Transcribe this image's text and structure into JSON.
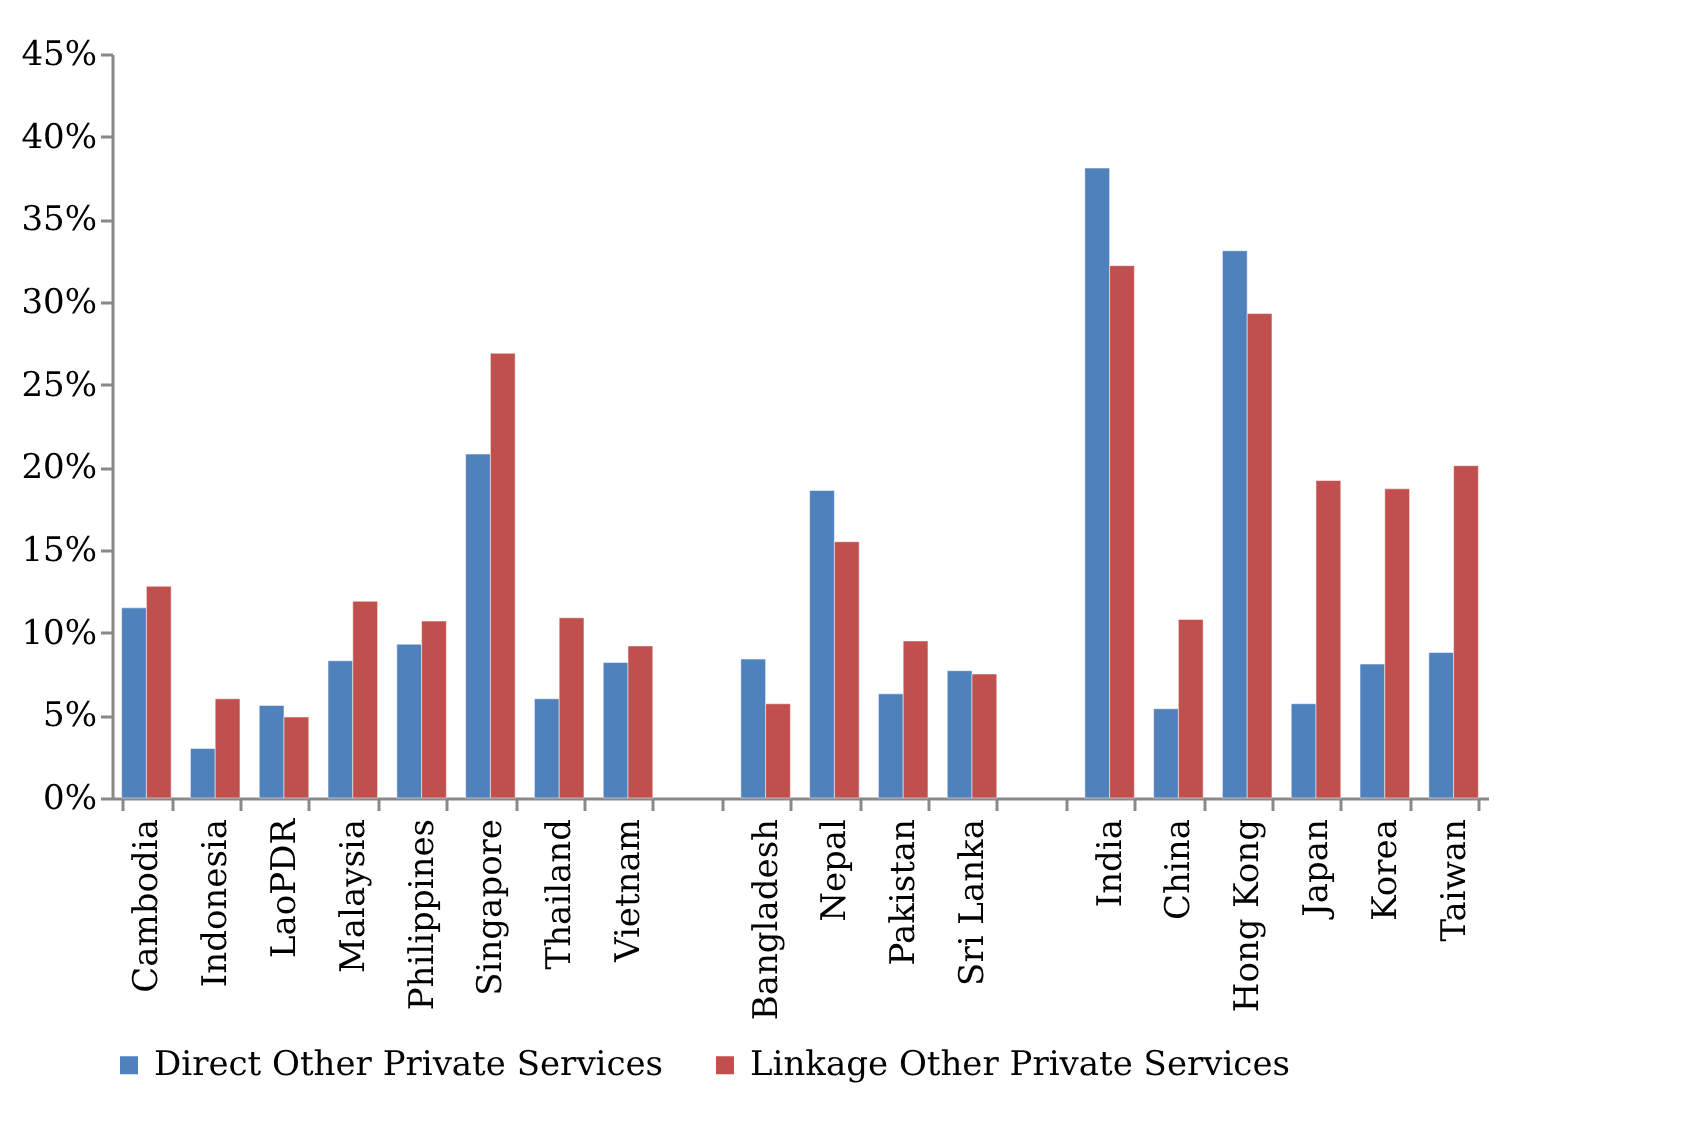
{
  "chart_data": {
    "type": "bar",
    "categories": [
      "Cambodia",
      "Indonesia",
      "LaoPDR",
      "Malaysia",
      "Philippines",
      "Singapore",
      "Thailand",
      "Vietnam",
      null,
      "Bangladesh",
      "Nepal",
      "Pakistan",
      "Sri Lanka",
      null,
      "India",
      "China",
      "Hong Kong",
      "Japan",
      "Korea",
      "Taiwan"
    ],
    "series": [
      {
        "name": "Direct Other Private Services",
        "color": "#4f81bd",
        "values": [
          11.5,
          3.0,
          5.6,
          8.3,
          9.3,
          20.8,
          6.0,
          8.2,
          null,
          8.4,
          18.6,
          6.3,
          7.7,
          null,
          38.1,
          5.4,
          33.1,
          5.7,
          8.1,
          8.8
        ]
      },
      {
        "name": "Linkage Other Private Services",
        "color": "#c0504d",
        "values": [
          12.8,
          6.0,
          4.9,
          11.9,
          10.7,
          26.9,
          10.9,
          9.2,
          null,
          5.7,
          15.5,
          9.5,
          7.5,
          null,
          32.2,
          10.8,
          29.3,
          19.2,
          18.7,
          20.1
        ]
      }
    ],
    "ylim": [
      0,
      45
    ],
    "yticks": [
      {
        "value": 0,
        "label": "0%"
      },
      {
        "value": 5,
        "label": "5%"
      },
      {
        "value": 10,
        "label": "10%"
      },
      {
        "value": 15,
        "label": "15%"
      },
      {
        "value": 20,
        "label": "20%"
      },
      {
        "value": 25,
        "label": "25%"
      },
      {
        "value": 30,
        "label": "30%"
      },
      {
        "value": 35,
        "label": "35%"
      },
      {
        "value": 40,
        "label": "40%"
      },
      {
        "value": 45,
        "label": "45%"
      }
    ],
    "grid": false,
    "legend": "bottom"
  }
}
